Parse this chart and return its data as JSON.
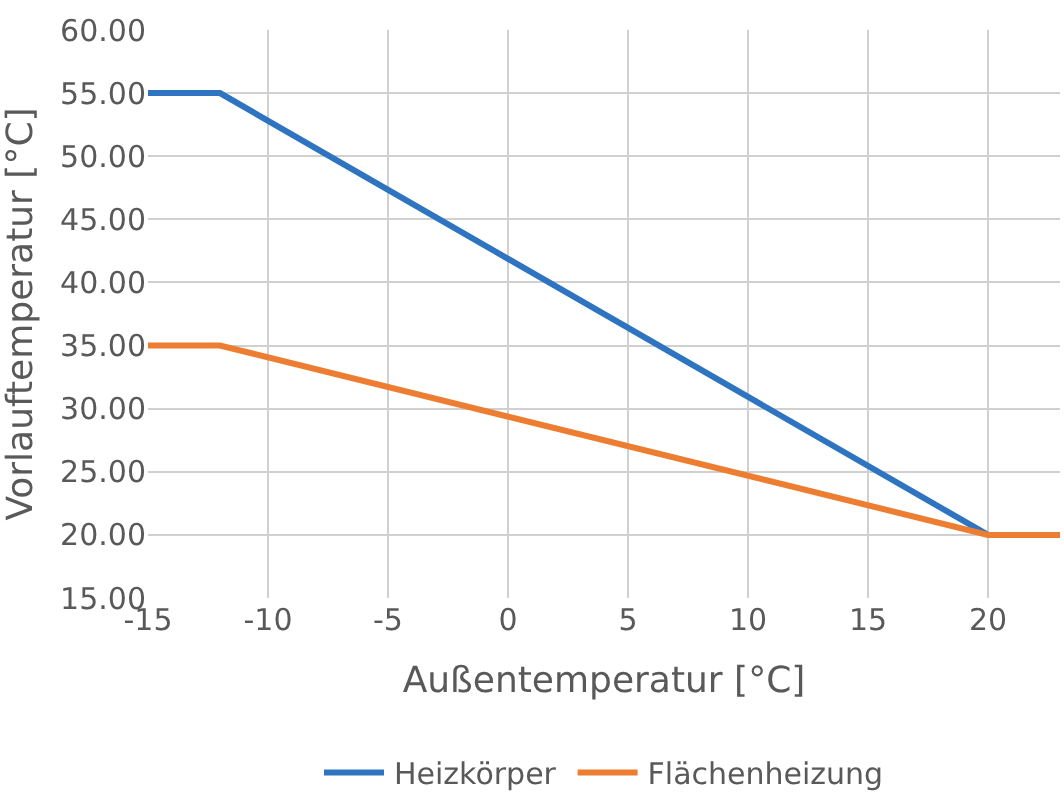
{
  "chart_data": {
    "type": "line",
    "xlabel": "Außentemperatur [°C]",
    "ylabel": "Vorlauftemperatur [°C]",
    "xlim": [
      -15,
      23
    ],
    "xticks": [
      -15,
      -10,
      -5,
      0,
      5,
      10,
      15,
      20
    ],
    "ylim": [
      15,
      60
    ],
    "yticks": [
      {
        "value": 15,
        "label": "15.00"
      },
      {
        "value": 20,
        "label": "20.00"
      },
      {
        "value": 25,
        "label": "25.00"
      },
      {
        "value": 30,
        "label": "30.00"
      },
      {
        "value": 35,
        "label": "35.00"
      },
      {
        "value": 40,
        "label": "40.00"
      },
      {
        "value": 45,
        "label": "45.00"
      },
      {
        "value": 50,
        "label": "50.00"
      },
      {
        "value": 55,
        "label": "55.00"
      },
      {
        "value": 60,
        "label": "60.00"
      }
    ],
    "grid": true,
    "legend": "bottom",
    "marker": "none",
    "line_style": "solid",
    "series": [
      {
        "name": "Heizkörper",
        "color": "#2e74c0",
        "x": [
          -15,
          -12,
          20
        ],
        "values": [
          55,
          55,
          20
        ]
      },
      {
        "name": "Flächenheizung",
        "color": "#ed7d31",
        "x": [
          -15,
          -12,
          20,
          23
        ],
        "values": [
          35,
          35,
          20,
          20
        ]
      }
    ]
  }
}
